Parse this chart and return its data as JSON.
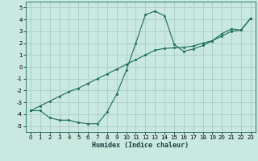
{
  "xlabel": "Humidex (Indice chaleur)",
  "background_color": "#c8e8e0",
  "grid_color": "#a8ccc4",
  "line_color": "#1a6b5a",
  "xlim": [
    -0.5,
    23.5
  ],
  "ylim": [
    -5.5,
    5.5
  ],
  "xticks": [
    0,
    1,
    2,
    3,
    4,
    5,
    6,
    7,
    8,
    9,
    10,
    11,
    12,
    13,
    14,
    15,
    16,
    17,
    18,
    19,
    20,
    21,
    22,
    23
  ],
  "yticks": [
    -5,
    -4,
    -3,
    -2,
    -1,
    0,
    1,
    2,
    3,
    4,
    5
  ],
  "line1_x": [
    0,
    1,
    2,
    3,
    4,
    5,
    6,
    7,
    8,
    9,
    10,
    11,
    12,
    13,
    14,
    15,
    16,
    17,
    18,
    19,
    20,
    21,
    22,
    23
  ],
  "line1_y": [
    -3.7,
    -3.7,
    -4.3,
    -4.5,
    -4.5,
    -4.7,
    -4.8,
    -4.8,
    -3.8,
    -2.3,
    -0.3,
    2.0,
    4.4,
    4.7,
    4.3,
    1.9,
    1.3,
    1.5,
    1.8,
    2.2,
    2.8,
    3.2,
    3.1,
    4.1
  ],
  "line2_x": [
    0,
    1,
    2,
    3,
    4,
    5,
    6,
    7,
    8,
    9,
    10,
    11,
    12,
    13,
    14,
    15,
    16,
    17,
    18,
    19,
    20,
    21,
    22,
    23
  ],
  "line2_y": [
    -3.7,
    -3.3,
    -2.9,
    -2.5,
    -2.1,
    -1.8,
    -1.4,
    -1.0,
    -0.6,
    -0.2,
    0.2,
    0.6,
    1.0,
    1.4,
    1.55,
    1.6,
    1.65,
    1.75,
    2.0,
    2.2,
    2.6,
    3.0,
    3.1,
    4.1
  ]
}
